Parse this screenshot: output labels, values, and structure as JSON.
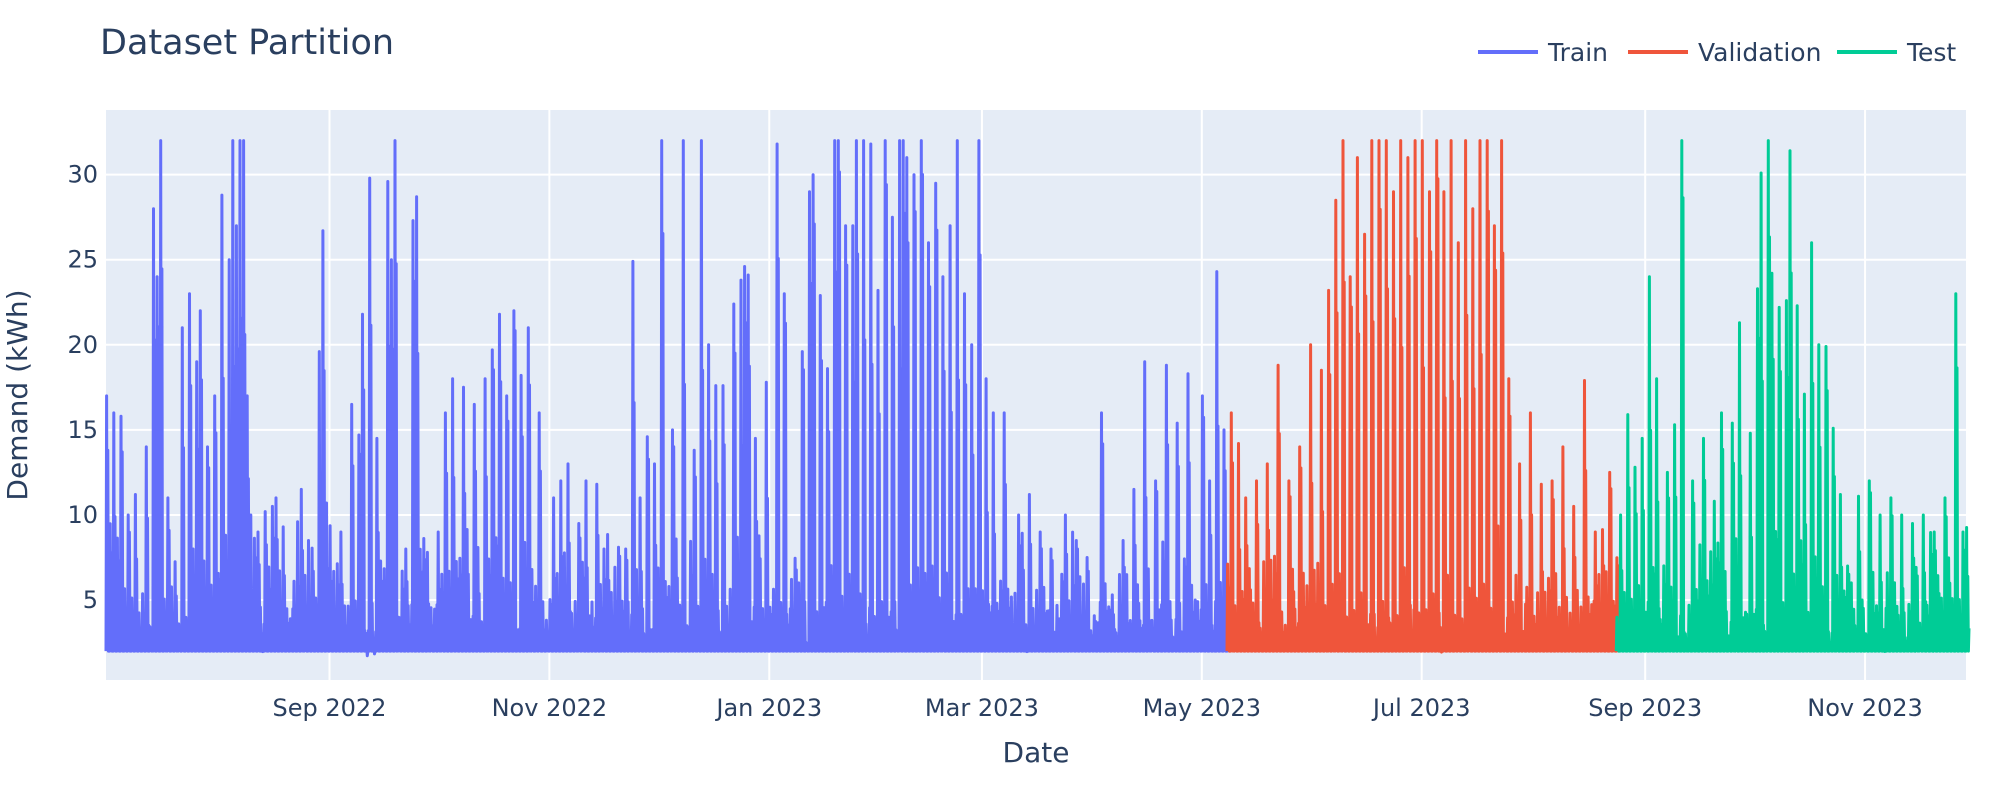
{
  "chart_data": {
    "type": "line",
    "title": "Dataset Partition",
    "xlabel": "Date",
    "ylabel": "Demand (kWh)",
    "xlim": [
      "2022-07-01",
      "2023-11-29"
    ],
    "ylim": [
      0.3,
      33.8
    ],
    "grid": true,
    "legend_position": "top-right",
    "x_ticks": [
      {
        "date": "2022-09-01",
        "label": "Sep 2022"
      },
      {
        "date": "2022-11-01",
        "label": "Nov 2022"
      },
      {
        "date": "2023-01-01",
        "label": "Jan 2023"
      },
      {
        "date": "2023-03-01",
        "label": "Mar 2023"
      },
      {
        "date": "2023-05-01",
        "label": "May 2023"
      },
      {
        "date": "2023-07-01",
        "label": "Jul 2023"
      },
      {
        "date": "2023-09-01",
        "label": "Sep 2023"
      },
      {
        "date": "2023-11-01",
        "label": "Nov 2023"
      }
    ],
    "y_ticks": [
      {
        "value": 5,
        "label": "5"
      },
      {
        "value": 10,
        "label": "10"
      },
      {
        "value": 15,
        "label": "15"
      },
      {
        "value": 20,
        "label": "20"
      },
      {
        "value": 25,
        "label": "25"
      },
      {
        "value": 30,
        "label": "30"
      }
    ],
    "series": [
      {
        "name": "Train",
        "color": "#636efa",
        "date_range": [
          "2022-07-01",
          "2023-05-08"
        ],
        "baseline": 2,
        "peaks": [
          [
            "2022-07-01",
            17
          ],
          [
            "2022-07-03",
            16
          ],
          [
            "2022-07-05",
            15.8
          ],
          [
            "2022-07-07",
            10
          ],
          [
            "2022-07-09",
            11.2
          ],
          [
            "2022-07-12",
            14
          ],
          [
            "2022-07-14",
            28
          ],
          [
            "2022-07-15",
            24
          ],
          [
            "2022-07-16",
            32
          ],
          [
            "2022-07-18",
            11
          ],
          [
            "2022-07-22",
            21
          ],
          [
            "2022-07-24",
            23
          ],
          [
            "2022-07-26",
            19
          ],
          [
            "2022-07-27",
            22
          ],
          [
            "2022-07-29",
            14
          ],
          [
            "2022-07-31",
            17
          ],
          [
            "2022-08-02",
            28.8
          ],
          [
            "2022-08-04",
            25
          ],
          [
            "2022-08-05",
            32
          ],
          [
            "2022-08-06",
            27
          ],
          [
            "2022-08-07",
            32
          ],
          [
            "2022-08-08",
            32
          ],
          [
            "2022-08-09",
            17
          ],
          [
            "2022-08-10",
            10
          ],
          [
            "2022-08-12",
            9
          ],
          [
            "2022-08-14",
            10.2
          ],
          [
            "2022-08-16",
            10.5
          ],
          [
            "2022-08-17",
            11
          ],
          [
            "2022-08-19",
            9.3
          ],
          [
            "2022-08-23",
            9.6
          ],
          [
            "2022-08-24",
            11.5
          ],
          [
            "2022-08-26",
            8.5
          ],
          [
            "2022-08-29",
            19.6
          ],
          [
            "2022-08-30",
            26.7
          ],
          [
            "2022-08-31",
            10.7
          ],
          [
            "2022-09-04",
            9
          ],
          [
            "2022-09-07",
            16.5
          ],
          [
            "2022-09-09",
            14.7
          ],
          [
            "2022-09-10",
            21.8
          ],
          [
            "2022-09-12",
            29.8
          ],
          [
            "2022-09-14",
            14.5
          ],
          [
            "2022-09-17",
            29.6
          ],
          [
            "2022-09-18",
            25
          ],
          [
            "2022-09-19",
            32
          ],
          [
            "2022-09-22",
            8
          ],
          [
            "2022-09-24",
            27.3
          ],
          [
            "2022-09-25",
            28.7
          ],
          [
            "2022-09-28",
            7.8
          ],
          [
            "2022-10-01",
            9
          ],
          [
            "2022-10-03",
            16
          ],
          [
            "2022-10-05",
            18
          ],
          [
            "2022-10-08",
            17.5
          ],
          [
            "2022-10-11",
            16.5
          ],
          [
            "2022-10-14",
            18
          ],
          [
            "2022-10-16",
            19.7
          ],
          [
            "2022-10-18",
            21.8
          ],
          [
            "2022-10-20",
            17
          ],
          [
            "2022-10-22",
            22
          ],
          [
            "2022-10-24",
            18.2
          ],
          [
            "2022-10-26",
            21
          ],
          [
            "2022-10-29",
            16
          ],
          [
            "2022-11-02",
            11
          ],
          [
            "2022-11-04",
            12
          ],
          [
            "2022-11-06",
            13
          ],
          [
            "2022-11-09",
            9.5
          ],
          [
            "2022-11-11",
            12
          ],
          [
            "2022-11-14",
            11.8
          ],
          [
            "2022-11-16",
            8
          ],
          [
            "2022-11-20",
            8.1
          ],
          [
            "2022-11-22",
            8
          ],
          [
            "2022-11-24",
            24.9
          ],
          [
            "2022-11-26",
            11
          ],
          [
            "2022-11-28",
            14.6
          ],
          [
            "2022-11-30",
            13
          ],
          [
            "2022-12-02",
            32
          ],
          [
            "2022-12-05",
            15
          ],
          [
            "2022-12-08",
            32
          ],
          [
            "2022-12-11",
            13.8
          ],
          [
            "2022-12-13",
            32
          ],
          [
            "2022-12-15",
            20
          ],
          [
            "2022-12-17",
            17.6
          ],
          [
            "2022-12-19",
            17.6
          ],
          [
            "2022-12-22",
            22.4
          ],
          [
            "2022-12-24",
            23.8
          ],
          [
            "2022-12-25",
            24.6
          ],
          [
            "2022-12-26",
            24.1
          ],
          [
            "2022-12-28",
            14.5
          ],
          [
            "2022-12-31",
            17.8
          ],
          [
            "2023-01-03",
            31.8
          ],
          [
            "2023-01-05",
            23
          ],
          [
            "2023-01-10",
            19.6
          ],
          [
            "2023-01-12",
            29
          ],
          [
            "2023-01-13",
            30
          ],
          [
            "2023-01-15",
            22.9
          ],
          [
            "2023-01-17",
            18.6
          ],
          [
            "2023-01-19",
            32
          ],
          [
            "2023-01-20",
            32
          ],
          [
            "2023-01-22",
            27
          ],
          [
            "2023-01-24",
            27
          ],
          [
            "2023-01-25",
            32
          ],
          [
            "2023-01-27",
            32
          ],
          [
            "2023-01-29",
            31.8
          ],
          [
            "2023-01-31",
            23.2
          ],
          [
            "2023-02-02",
            32
          ],
          [
            "2023-02-04",
            27.5
          ],
          [
            "2023-02-06",
            32
          ],
          [
            "2023-02-07",
            32
          ],
          [
            "2023-02-08",
            31
          ],
          [
            "2023-02-10",
            30
          ],
          [
            "2023-02-12",
            32
          ],
          [
            "2023-02-14",
            26
          ],
          [
            "2023-02-16",
            29.5
          ],
          [
            "2023-02-18",
            24
          ],
          [
            "2023-02-20",
            27
          ],
          [
            "2023-02-22",
            32
          ],
          [
            "2023-02-24",
            23
          ],
          [
            "2023-02-26",
            20
          ],
          [
            "2023-02-28",
            32
          ],
          [
            "2023-03-02",
            18
          ],
          [
            "2023-03-04",
            16
          ],
          [
            "2023-03-07",
            16
          ],
          [
            "2023-03-11",
            10
          ],
          [
            "2023-03-14",
            11.2
          ],
          [
            "2023-03-17",
            9
          ],
          [
            "2023-03-20",
            8
          ],
          [
            "2023-03-24",
            10
          ],
          [
            "2023-03-27",
            8.5
          ],
          [
            "2023-03-30",
            7.5
          ],
          [
            "2023-04-03",
            16
          ],
          [
            "2023-04-06",
            5.3
          ],
          [
            "2023-04-09",
            8.5
          ],
          [
            "2023-04-12",
            11.5
          ],
          [
            "2023-04-15",
            19
          ],
          [
            "2023-04-18",
            12
          ],
          [
            "2023-04-21",
            18.8
          ],
          [
            "2023-04-24",
            15.4
          ],
          [
            "2023-04-27",
            18.3
          ],
          [
            "2023-04-29",
            5
          ],
          [
            "2023-05-01",
            17
          ],
          [
            "2023-05-03",
            12
          ],
          [
            "2023-05-05",
            24.3
          ],
          [
            "2023-05-07",
            15
          ]
        ]
      },
      {
        "name": "Validation",
        "color": "#ef553b",
        "date_range": [
          "2023-05-08",
          "2023-08-24"
        ],
        "baseline": 2,
        "peaks": [
          [
            "2023-05-09",
            16
          ],
          [
            "2023-05-11",
            14.2
          ],
          [
            "2023-05-13",
            11
          ],
          [
            "2023-05-16",
            12
          ],
          [
            "2023-05-19",
            13
          ],
          [
            "2023-05-22",
            18.8
          ],
          [
            "2023-05-25",
            12
          ],
          [
            "2023-05-28",
            14
          ],
          [
            "2023-05-31",
            20
          ],
          [
            "2023-06-03",
            18.5
          ],
          [
            "2023-06-05",
            23.2
          ],
          [
            "2023-06-07",
            28.5
          ],
          [
            "2023-06-09",
            32
          ],
          [
            "2023-06-11",
            24
          ],
          [
            "2023-06-13",
            31
          ],
          [
            "2023-06-15",
            26.5
          ],
          [
            "2023-06-17",
            32
          ],
          [
            "2023-06-19",
            32
          ],
          [
            "2023-06-21",
            32
          ],
          [
            "2023-06-23",
            29
          ],
          [
            "2023-06-25",
            32
          ],
          [
            "2023-06-27",
            31
          ],
          [
            "2023-06-29",
            32
          ],
          [
            "2023-07-01",
            32
          ],
          [
            "2023-07-03",
            29
          ],
          [
            "2023-07-05",
            32
          ],
          [
            "2023-07-07",
            29
          ],
          [
            "2023-07-09",
            32
          ],
          [
            "2023-07-11",
            26
          ],
          [
            "2023-07-13",
            32
          ],
          [
            "2023-07-15",
            28
          ],
          [
            "2023-07-17",
            32
          ],
          [
            "2023-07-19",
            32
          ],
          [
            "2023-07-21",
            27
          ],
          [
            "2023-07-23",
            32
          ],
          [
            "2023-07-25",
            18
          ],
          [
            "2023-07-28",
            13
          ],
          [
            "2023-07-31",
            16
          ],
          [
            "2023-08-03",
            11.8
          ],
          [
            "2023-08-06",
            12
          ],
          [
            "2023-08-09",
            14
          ],
          [
            "2023-08-12",
            10.5
          ],
          [
            "2023-08-15",
            17.9
          ],
          [
            "2023-08-18",
            9
          ],
          [
            "2023-08-22",
            12.5
          ]
        ]
      },
      {
        "name": "Test",
        "color": "#00cc96",
        "date_range": [
          "2023-08-24",
          "2023-11-29"
        ],
        "baseline": 2,
        "peaks": [
          [
            "2023-08-25",
            10
          ],
          [
            "2023-08-27",
            15.9
          ],
          [
            "2023-08-29",
            12.8
          ],
          [
            "2023-08-31",
            14.5
          ],
          [
            "2023-09-02",
            24
          ],
          [
            "2023-09-04",
            18
          ],
          [
            "2023-09-07",
            12.5
          ],
          [
            "2023-09-09",
            15.3
          ],
          [
            "2023-09-11",
            32
          ],
          [
            "2023-09-14",
            12
          ],
          [
            "2023-09-17",
            14.5
          ],
          [
            "2023-09-20",
            10.8
          ],
          [
            "2023-09-22",
            16
          ],
          [
            "2023-09-25",
            15.4
          ],
          [
            "2023-09-27",
            21.3
          ],
          [
            "2023-09-30",
            14.8
          ],
          [
            "2023-10-02",
            23.3
          ],
          [
            "2023-10-03",
            30.1
          ],
          [
            "2023-10-05",
            32
          ],
          [
            "2023-10-06",
            24.2
          ],
          [
            "2023-10-08",
            22.2
          ],
          [
            "2023-10-10",
            22.6
          ],
          [
            "2023-10-11",
            31.4
          ],
          [
            "2023-10-13",
            22.3
          ],
          [
            "2023-10-15",
            17.1
          ],
          [
            "2023-10-17",
            26
          ],
          [
            "2023-10-19",
            20
          ],
          [
            "2023-10-21",
            19.9
          ],
          [
            "2023-10-23",
            15.1
          ],
          [
            "2023-10-25",
            11.2
          ],
          [
            "2023-10-27",
            7
          ],
          [
            "2023-10-30",
            11.1
          ],
          [
            "2023-11-02",
            12
          ],
          [
            "2023-11-05",
            10
          ],
          [
            "2023-11-08",
            11
          ],
          [
            "2023-11-11",
            10
          ],
          [
            "2023-11-14",
            9.5
          ],
          [
            "2023-11-17",
            10
          ],
          [
            "2023-11-20",
            9
          ],
          [
            "2023-11-23",
            11
          ],
          [
            "2023-11-26",
            23
          ],
          [
            "2023-11-28",
            9
          ]
        ]
      }
    ]
  }
}
